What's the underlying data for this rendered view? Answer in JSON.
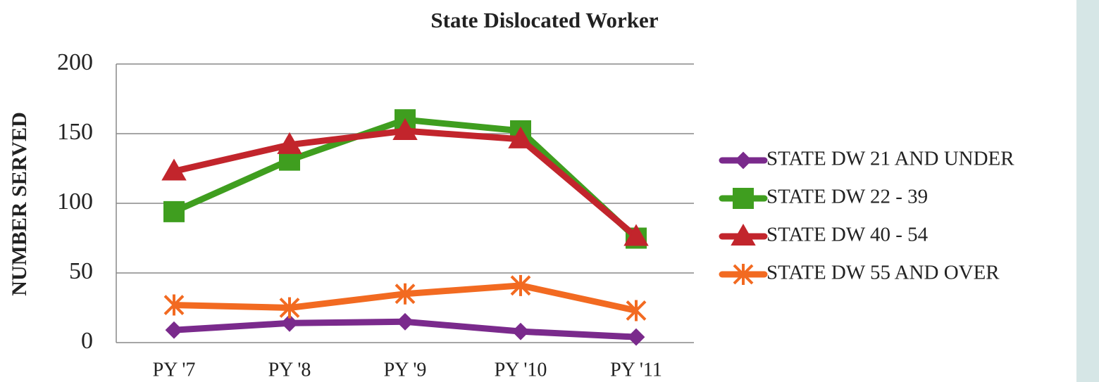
{
  "chart_data": {
    "type": "line",
    "title": "State Dislocated Worker",
    "y_label": "NUMBER SERVED",
    "categories": [
      "PY '7",
      "PY '8",
      "PY '9",
      "PY '10",
      "PY '11"
    ],
    "series": [
      {
        "name": "STATE DW 21 AND UNDER",
        "color": "#7a2a8c",
        "marker": "diamond",
        "values": [
          9,
          14,
          15,
          8,
          4
        ]
      },
      {
        "name": "STATE DW 22 - 39",
        "color": "#3f9e1f",
        "marker": "square",
        "values": [
          94,
          131,
          160,
          152,
          75
        ]
      },
      {
        "name": "STATE DW 40 - 54",
        "color": "#c2252c",
        "marker": "triangle",
        "values": [
          123,
          142,
          152,
          146,
          76
        ]
      },
      {
        "name": "STATE DW 55 AND OVER",
        "color": "#f26a21",
        "marker": "star",
        "values": [
          27,
          25,
          35,
          41,
          23
        ]
      }
    ],
    "ylim": [
      0,
      200
    ],
    "yticks": [
      0,
      50,
      100,
      150,
      200
    ],
    "grid": true,
    "legend": "right"
  }
}
